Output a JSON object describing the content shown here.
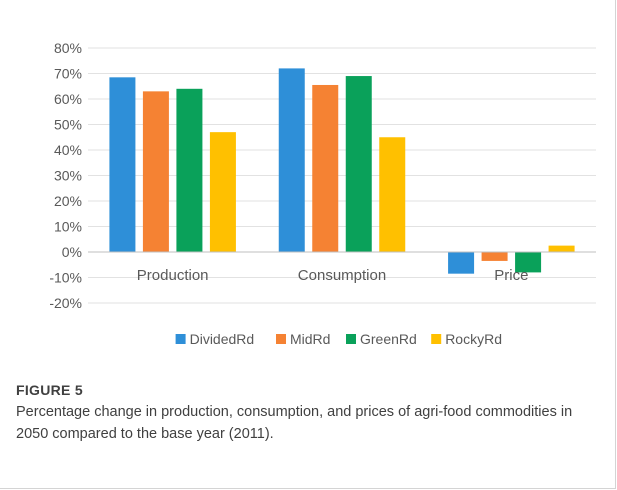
{
  "figure": {
    "label": "FIGURE 5",
    "caption": "Percentage change in production, consumption, and prices of agri-food commodities in 2050 compared to the base year (2011)."
  },
  "chart_data": {
    "type": "bar",
    "title": "",
    "xlabel": "",
    "ylabel": "",
    "categories": [
      "Production",
      "Consumption",
      "Price"
    ],
    "series": [
      {
        "name": "DividedRd",
        "color": "#2e8fd8",
        "values": [
          68.5,
          72,
          -8.5
        ]
      },
      {
        "name": "MidRd",
        "color": "#f58233",
        "values": [
          63,
          65.5,
          -3.5
        ]
      },
      {
        "name": "GreenRd",
        "color": "#0aa15a",
        "values": [
          64,
          69,
          -8
        ]
      },
      {
        "name": "RockyRd",
        "color": "#ffc000",
        "values": [
          47,
          45,
          2.5
        ]
      }
    ],
    "ylim": [
      -20,
      80
    ],
    "yticks": [
      80,
      70,
      60,
      50,
      40,
      30,
      20,
      10,
      0,
      -10,
      -20
    ],
    "ytick_labels": [
      "80%",
      "70%",
      "60%",
      "50%",
      "40%",
      "30%",
      "20%",
      "10%",
      "0%",
      "-10%",
      "-20%"
    ],
    "grid": true,
    "legend_position": "bottom"
  }
}
